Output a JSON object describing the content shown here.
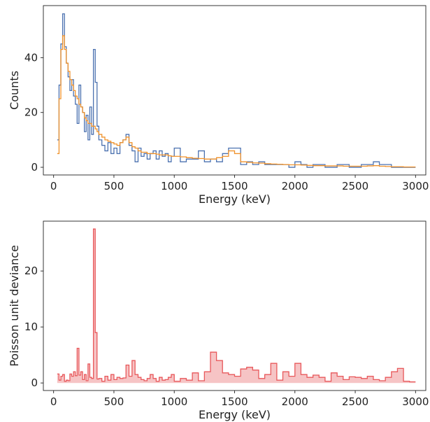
{
  "chart_data": [
    {
      "type": "line",
      "xlabel": "Energy (keV)",
      "ylabel": "Counts",
      "xlim": [
        -85,
        3085
      ],
      "ylim": [
        -2.8,
        59
      ],
      "xticks": [
        0,
        500,
        1000,
        1500,
        2000,
        2500,
        3000
      ],
      "yticks": [
        0,
        20,
        40
      ],
      "grid": false,
      "legend": "none",
      "series": [
        {
          "color": "#4c72b0",
          "drawstyle": "steps",
          "x": [
            30,
            45,
            60,
            75,
            90,
            105,
            120,
            135,
            150,
            165,
            180,
            195,
            210,
            225,
            240,
            255,
            270,
            285,
            300,
            315,
            330,
            345,
            360,
            375,
            400,
            425,
            450,
            475,
            500,
            525,
            550,
            575,
            600,
            625,
            650,
            675,
            700,
            725,
            750,
            775,
            800,
            825,
            850,
            875,
            900,
            925,
            950,
            975,
            1000,
            1050,
            1100,
            1150,
            1200,
            1250,
            1300,
            1350,
            1400,
            1450,
            1500,
            1550,
            1600,
            1650,
            1700,
            1750,
            1800,
            1850,
            1900,
            1950,
            2000,
            2050,
            2100,
            2150,
            2200,
            2250,
            2300,
            2350,
            2400,
            2450,
            2500,
            2550,
            2600,
            2650,
            2700,
            2750,
            2800,
            2850,
            2900,
            2950,
            2990
          ],
          "y": [
            10,
            30,
            45,
            56,
            44,
            38,
            33,
            28,
            32,
            26,
            23,
            16,
            30,
            22,
            20,
            13,
            19,
            10,
            22,
            12,
            43,
            31,
            15,
            10,
            8,
            6,
            9,
            5,
            7,
            5,
            9,
            10,
            12,
            8,
            6,
            2,
            7,
            4,
            5,
            3,
            5,
            6,
            3,
            6,
            4,
            5,
            2,
            4,
            7,
            2,
            3,
            3,
            6,
            2,
            3,
            2,
            5,
            7,
            7,
            1,
            2,
            1,
            2,
            1,
            1,
            1,
            1,
            0,
            2,
            1,
            0,
            1,
            1,
            0,
            0,
            1,
            1,
            0,
            0,
            1,
            1,
            2,
            1,
            1,
            0,
            0,
            0,
            0,
            0
          ]
        },
        {
          "color": "#f0922b",
          "drawstyle": "steps",
          "x": [
            30,
            45,
            60,
            75,
            90,
            105,
            120,
            135,
            150,
            165,
            180,
            195,
            210,
            225,
            240,
            255,
            270,
            285,
            300,
            315,
            330,
            345,
            360,
            375,
            400,
            425,
            450,
            475,
            500,
            525,
            550,
            575,
            600,
            625,
            650,
            675,
            700,
            725,
            750,
            775,
            800,
            825,
            850,
            875,
            900,
            925,
            950,
            975,
            1000,
            1050,
            1100,
            1150,
            1200,
            1250,
            1300,
            1350,
            1400,
            1450,
            1500,
            1550,
            1600,
            1650,
            1700,
            1750,
            1800,
            1850,
            1900,
            1950,
            2000,
            2050,
            2100,
            2150,
            2200,
            2250,
            2300,
            2350,
            2400,
            2450,
            2500,
            2550,
            2600,
            2650,
            2700,
            2750,
            2800,
            2850,
            2900,
            2950,
            2990
          ],
          "y": [
            5,
            25,
            43,
            48,
            43,
            38,
            35,
            32,
            30,
            28,
            26,
            25,
            23,
            22,
            20,
            18,
            17,
            16,
            16,
            15,
            15,
            14,
            13,
            12,
            11,
            10,
            9.5,
            9,
            8.5,
            8,
            9,
            10,
            11,
            9,
            7.5,
            7,
            6,
            5.5,
            5.5,
            5,
            5,
            5,
            4.8,
            4.5,
            4.5,
            4.5,
            4.2,
            4,
            4,
            3.8,
            3.5,
            3.3,
            3.2,
            3,
            3,
            3.5,
            4,
            6,
            5,
            2,
            1.8,
            1.6,
            1.5,
            1.3,
            1.2,
            1.1,
            1,
            0.9,
            0.9,
            0.8,
            0.7,
            0.6,
            0.6,
            0.5,
            0.5,
            0.5,
            0.4,
            0.4,
            0.4,
            0.4,
            0.5,
            0.6,
            0.4,
            0.3,
            0.2,
            0.2,
            0.1,
            0.1,
            0.1
          ]
        }
      ]
    },
    {
      "type": "area",
      "xlabel": "Energy (keV)",
      "ylabel": "Poisson unit deviance",
      "xlim": [
        -85,
        3085
      ],
      "ylim": [
        -1.35,
        28.9
      ],
      "xticks": [
        0,
        500,
        1000,
        1500,
        2000,
        2500,
        3000
      ],
      "yticks": [
        0,
        10,
        20
      ],
      "grid": false,
      "legend": "none",
      "series": [
        {
          "color": "#e8585b",
          "fill": "#f6c4c5",
          "drawstyle": "steps",
          "x": [
            30,
            45,
            60,
            75,
            90,
            105,
            120,
            135,
            150,
            165,
            180,
            195,
            210,
            225,
            240,
            255,
            270,
            285,
            300,
            315,
            330,
            345,
            360,
            375,
            400,
            425,
            450,
            475,
            500,
            525,
            550,
            575,
            600,
            625,
            650,
            675,
            700,
            725,
            750,
            775,
            800,
            825,
            850,
            875,
            900,
            925,
            950,
            975,
            1000,
            1050,
            1100,
            1150,
            1200,
            1250,
            1300,
            1350,
            1400,
            1450,
            1500,
            1550,
            1600,
            1650,
            1700,
            1750,
            1800,
            1850,
            1900,
            1950,
            2000,
            2050,
            2100,
            2150,
            2200,
            2250,
            2300,
            2350,
            2400,
            2450,
            2500,
            2550,
            2600,
            2650,
            2700,
            2750,
            2800,
            2850,
            2900,
            2950,
            2990
          ],
          "y": [
            1.6,
            0.5,
            1.2,
            1.5,
            0.3,
            0.5,
            0.4,
            1.6,
            1.2,
            2.0,
            1.3,
            6.2,
            1.4,
            2.0,
            0.6,
            1.5,
            0.4,
            3.4,
            1.0,
            0.8,
            27.5,
            9.0,
            0.7,
            0.8,
            0.3,
            1.2,
            0.5,
            1.5,
            0.6,
            1.0,
            0.8,
            0.9,
            3.2,
            1.2,
            4.0,
            1.5,
            1.0,
            0.6,
            0.4,
            0.8,
            1.5,
            0.8,
            0.3,
            1.0,
            0.5,
            0.6,
            1.0,
            1.5,
            0.3,
            0.8,
            0.5,
            1.8,
            0.4,
            2.0,
            5.5,
            4.0,
            1.8,
            1.5,
            1.2,
            2.5,
            2.8,
            2.3,
            0.8,
            1.5,
            3.5,
            0.5,
            2.0,
            1.2,
            3.5,
            1.5,
            1.0,
            1.4,
            1.0,
            0.3,
            1.8,
            1.2,
            0.6,
            1.1,
            1.0,
            0.8,
            1.2,
            0.6,
            0.4,
            1.0,
            2.0,
            2.6,
            0.3,
            0.2,
            0.2
          ]
        }
      ]
    }
  ]
}
